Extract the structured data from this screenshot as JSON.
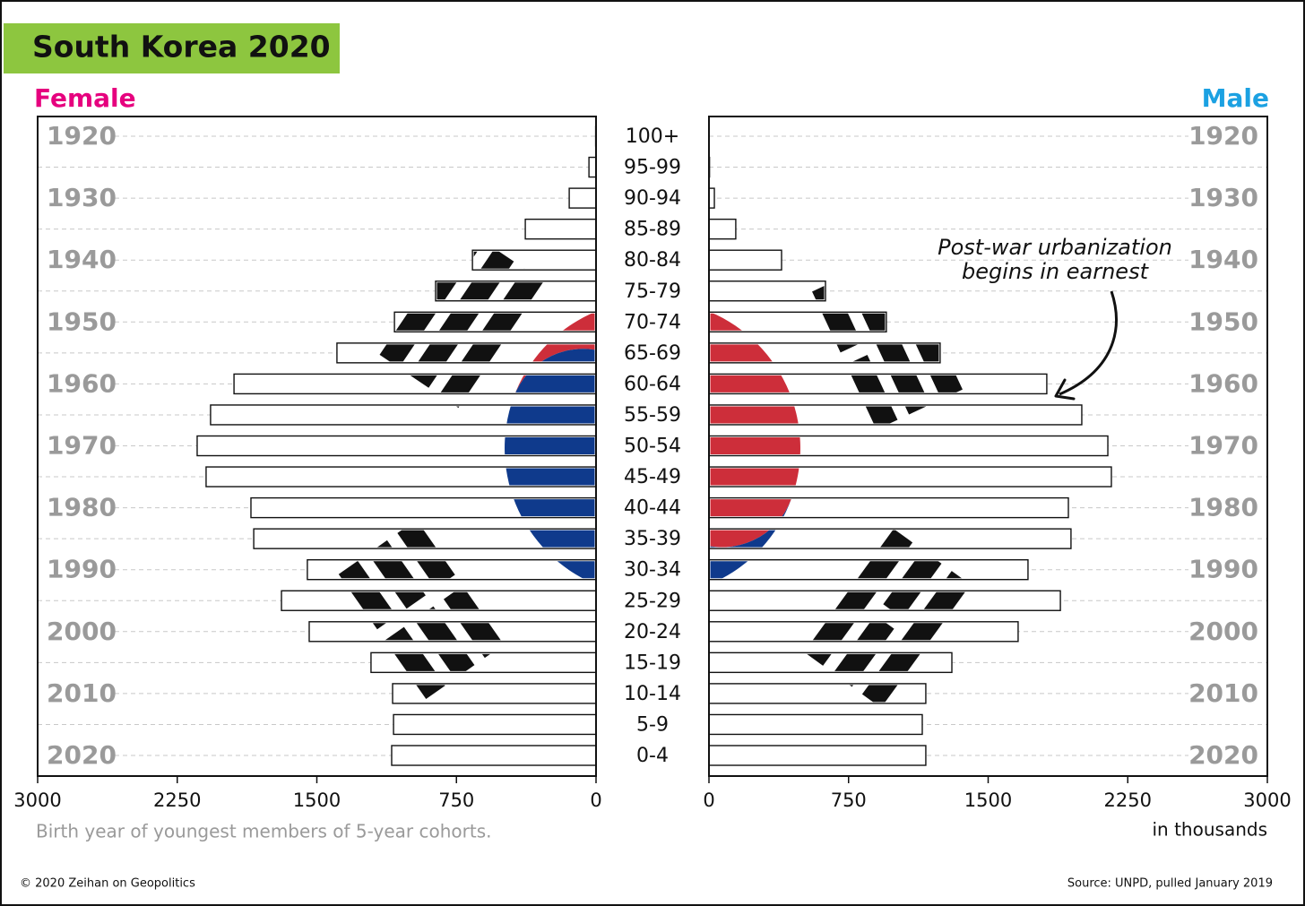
{
  "chart_data": {
    "type": "population-pyramid",
    "title": "South Korea 2020",
    "categories": [
      "100+",
      "95-99",
      "90-94",
      "85-89",
      "80-84",
      "75-79",
      "70-74",
      "65-69",
      "60-64",
      "55-59",
      "50-54",
      "45-49",
      "40-44",
      "35-39",
      "30-34",
      "25-29",
      "20-24",
      "15-19",
      "10-14",
      "5-9",
      "0-4"
    ],
    "years": [
      "1920",
      "1930",
      "1940",
      "1950",
      "1960",
      "1970",
      "1980",
      "1990",
      "2000",
      "2010",
      "2020"
    ],
    "series": [
      {
        "name": "Female",
        "color": "#ffffff",
        "values": [
          2,
          38,
          144,
          380,
          664,
          862,
          1083,
          1392,
          1945,
          2071,
          2143,
          2095,
          1854,
          1839,
          1551,
          1690,
          1541,
          1209,
          1093,
          1088,
          1098
        ]
      },
      {
        "name": "Male",
        "color": "#ffffff",
        "values": [
          1,
          3,
          29,
          144,
          390,
          626,
          953,
          1242,
          1815,
          2003,
          2143,
          2162,
          1931,
          1945,
          1714,
          1888,
          1661,
          1305,
          1165,
          1146,
          1165
        ]
      }
    ],
    "xlim": [
      0,
      3000
    ],
    "xticks": [
      0,
      750,
      1500,
      2250,
      3000
    ],
    "annotation": [
      "Post-war urbanization",
      "begins in earnest"
    ],
    "note": "Birth year of youngest members of 5-year cohorts.",
    "unit_label": "in thousands",
    "copyright": "© 2020 Zeihan on Geopolitics",
    "source": "Source: UNPD, pulled January 2019"
  }
}
